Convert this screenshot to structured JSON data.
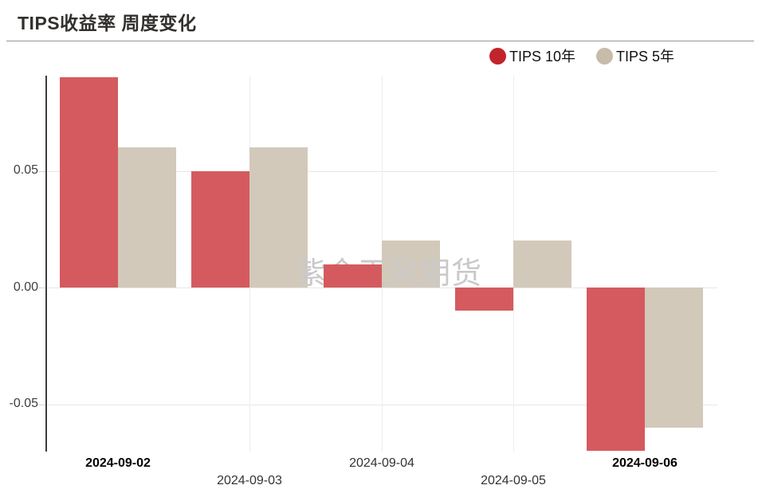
{
  "title": "TIPS收益率 周度变化",
  "watermark": {
    "text": "紫金天风期货",
    "color": "#c9c9c9"
  },
  "legend": {
    "items": [
      {
        "id": "10y",
        "label": "TIPS 10年",
        "marker_color": "#c2242b"
      },
      {
        "id": "5y",
        "label": "TIPS 5年",
        "marker_color": "#c7bca9"
      }
    ]
  },
  "chart_data": {
    "type": "bar",
    "title": "TIPS收益率 周度变化",
    "categories": [
      "2024-09-02",
      "2024-09-03",
      "2024-09-04",
      "2024-09-05",
      "2024-09-06"
    ],
    "series": [
      {
        "id": "10y",
        "name": "TIPS 10年",
        "color": "#d55a5f",
        "legend_color": "#c2242b",
        "values": [
          0.09,
          0.05,
          0.01,
          -0.01,
          -0.07
        ]
      },
      {
        "id": "5y",
        "name": "TIPS 5年",
        "color": "#d2c9ba",
        "legend_color": "#c7bca9",
        "values": [
          0.06,
          0.06,
          0.02,
          0.02,
          -0.06
        ]
      }
    ],
    "xlabel": "",
    "ylabel": "",
    "yticks": [
      0.05,
      0.0,
      -0.05
    ],
    "ytick_labels": [
      "0.05",
      "0.00",
      "-0.05"
    ],
    "ylim": [
      -0.07,
      0.091
    ],
    "grid": true,
    "legend_position": "top-right",
    "emphasized_categories": [
      "2024-09-02",
      "2024-09-06"
    ],
    "watermark": "紫金天风期货"
  }
}
